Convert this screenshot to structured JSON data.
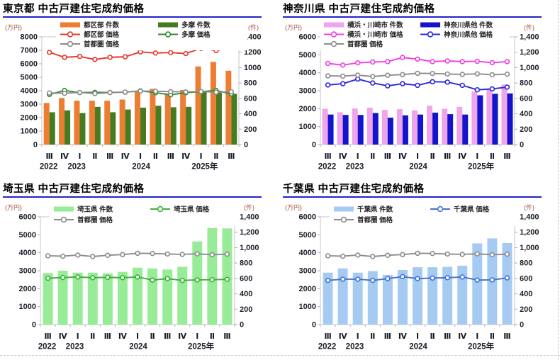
{
  "chart_data": [
    {
      "id": "tokyo",
      "type": "bar",
      "title": "東京都 中古戸建住宅成約価格",
      "left_axis": {
        "unit": "(万円)",
        "min": 0,
        "max": 8000,
        "tick_labels": [
          "8000",
          "7000",
          "6000",
          "5000",
          "4000",
          "3000",
          "2000",
          "1000",
          "0"
        ]
      },
      "right_axis": {
        "unit": "(件)",
        "min": 0,
        "max": 1400,
        "tick_labels": [
          "1400",
          "1200",
          "1000",
          "800",
          "600",
          "400",
          "200",
          "0"
        ]
      },
      "x_quarter_labels": [
        "Ⅲ",
        "Ⅳ",
        "Ⅰ",
        "Ⅱ",
        "Ⅲ",
        "Ⅳ",
        "Ⅰ",
        "Ⅱ",
        "Ⅲ",
        "Ⅳ",
        "Ⅰ",
        "Ⅱ",
        "Ⅲ"
      ],
      "x_year_labels": [
        {
          "label": "2022",
          "index": 0.45
        },
        {
          "label": "2023",
          "index": 2.3
        },
        {
          "label": "2024",
          "index": 6.55
        },
        {
          "label": "2025年",
          "index": 10.75
        }
      ],
      "bar_series": [
        {
          "name": "都区部 件数",
          "color": "#ED7D31",
          "axis": "right",
          "values": [
            540,
            605,
            570,
            570,
            570,
            585,
            690,
            725,
            650,
            710,
            1015,
            1075,
            960
          ]
        },
        {
          "name": "多摩 件数",
          "color": "#477B22",
          "axis": "right",
          "values": [
            420,
            445,
            410,
            490,
            420,
            455,
            480,
            505,
            485,
            490,
            690,
            690,
            660
          ]
        }
      ],
      "line_series": [
        {
          "name": "都区部 価格",
          "color": "#E8382A",
          "axis": "left",
          "values": [
            6850,
            6480,
            6550,
            6320,
            6480,
            6520,
            6880,
            6800,
            6830,
            6760,
            7140,
            6980,
            7200
          ]
        },
        {
          "name": "多摩 価格",
          "color": "#338A33",
          "axis": "left",
          "values": [
            3720,
            4020,
            3860,
            3880,
            3870,
            3890,
            3990,
            3850,
            3700,
            3850,
            3930,
            4020,
            3760
          ]
        },
        {
          "name": "首都圏 価格",
          "color": "#8C8C8C",
          "axis": "left",
          "values": [
            3830,
            3810,
            3870,
            3790,
            3860,
            3900,
            3970,
            3960,
            3930,
            3910,
            3940,
            3890,
            3920
          ]
        }
      ]
    },
    {
      "id": "kanagawa",
      "type": "bar",
      "title": "神奈川県 中古戸建住宅成約価格",
      "left_axis": {
        "unit": "(万円)",
        "min": 0,
        "max": 6000,
        "tick_labels": [
          "6000",
          "5000",
          "4000",
          "3000",
          "2000",
          "1000",
          "0"
        ]
      },
      "right_axis": {
        "unit": "(件)",
        "min": 0,
        "max": 1400,
        "tick_labels": [
          "1,400",
          "1,200",
          "1,000",
          "800",
          "600",
          "400",
          "200",
          "0"
        ]
      },
      "x_quarter_labels": [
        "Ⅲ",
        "Ⅳ",
        "Ⅰ",
        "Ⅱ",
        "Ⅲ",
        "Ⅳ",
        "Ⅰ",
        "Ⅱ",
        "Ⅲ",
        "Ⅳ",
        "Ⅰ",
        "Ⅱ",
        "Ⅲ"
      ],
      "x_year_labels": [
        {
          "label": "2022",
          "index": 0.45
        },
        {
          "label": "2023",
          "index": 2.3
        },
        {
          "label": "2024",
          "index": 6.55
        },
        {
          "label": "2025年",
          "index": 10.75
        }
      ],
      "bar_series": [
        {
          "name": "横浜・川崎市 件数",
          "color": "#EFA5EC",
          "axis": "right",
          "values": [
            465,
            420,
            470,
            480,
            450,
            460,
            445,
            505,
            465,
            490,
            690,
            730,
            780
          ]
        },
        {
          "name": "神奈川県他 件数",
          "color": "#1414CC",
          "axis": "right",
          "values": [
            390,
            385,
            385,
            410,
            350,
            380,
            390,
            415,
            395,
            390,
            640,
            660,
            665
          ]
        }
      ],
      "line_series": [
        {
          "name": "横浜・川崎市 価格",
          "color": "#F23CE4",
          "axis": "left",
          "values": [
            4520,
            4430,
            4550,
            4600,
            4620,
            4850,
            4760,
            4620,
            4660,
            4620,
            4640,
            4560,
            4620
          ]
        },
        {
          "name": "神奈川県他 価格",
          "color": "#2828DC",
          "axis": "left",
          "values": [
            3320,
            3390,
            3650,
            3430,
            3270,
            3390,
            3300,
            3500,
            3480,
            3300,
            3050,
            3100,
            3200
          ]
        },
        {
          "name": "首都圏 価格",
          "color": "#8C8C8C",
          "axis": "left",
          "values": [
            3830,
            3810,
            3870,
            3790,
            3860,
            3900,
            3970,
            3960,
            3930,
            3910,
            3940,
            3890,
            3920
          ]
        }
      ]
    },
    {
      "id": "saitama",
      "type": "bar",
      "title": "埼玉県 中古戸建住宅成約価格",
      "left_axis": {
        "unit": "(万円)",
        "min": 0,
        "max": 6000,
        "tick_labels": [
          "6000",
          "5000",
          "4000",
          "3000",
          "2000",
          "1000",
          "0"
        ]
      },
      "right_axis": {
        "unit": "(件)",
        "min": 0,
        "max": 1400,
        "tick_labels": [
          "1,400",
          "1,200",
          "1,000",
          "800",
          "600",
          "400",
          "200",
          "0"
        ]
      },
      "x_quarter_labels": [
        "Ⅲ",
        "Ⅳ",
        "Ⅰ",
        "Ⅱ",
        "Ⅲ",
        "Ⅳ",
        "Ⅰ",
        "Ⅱ",
        "Ⅲ",
        "Ⅳ",
        "Ⅰ",
        "Ⅱ",
        "Ⅲ"
      ],
      "x_year_labels": [
        {
          "label": "2022",
          "index": 0.45
        },
        {
          "label": "2023",
          "index": 2.3
        },
        {
          "label": "2024",
          "index": 6.55
        },
        {
          "label": "2025年",
          "index": 10.75
        }
      ],
      "bar_series": [
        {
          "name": "埼玉県 件数",
          "color": "#98EC98",
          "axis": "right",
          "values": [
            670,
            700,
            675,
            675,
            665,
            685,
            740,
            730,
            715,
            750,
            1080,
            1255,
            1250
          ]
        }
      ],
      "line_series": [
        {
          "name": "埼玉県 価格",
          "color": "#3FAE3F",
          "axis": "left",
          "values": [
            2580,
            2620,
            2650,
            2610,
            2630,
            2610,
            2650,
            2480,
            2560,
            2460,
            2490,
            2500,
            2520
          ]
        },
        {
          "name": "首都圏 価格",
          "color": "#8C8C8C",
          "axis": "left",
          "values": [
            3830,
            3810,
            3870,
            3790,
            3860,
            3900,
            3970,
            3960,
            3930,
            3910,
            3940,
            3890,
            3920
          ]
        }
      ]
    },
    {
      "id": "chiba",
      "type": "bar",
      "title": "千葉県 中古戸建住宅成約価格",
      "left_axis": {
        "unit": "(万円)",
        "min": 0,
        "max": 6000,
        "tick_labels": [
          "6000",
          "5000",
          "4000",
          "3000",
          "2000",
          "1000",
          "0"
        ]
      },
      "right_axis": {
        "unit": "(件)",
        "min": 0,
        "max": 1400,
        "tick_labels": [
          "1,400",
          "1,200",
          "1,000",
          "800",
          "600",
          "400",
          "200",
          "0"
        ]
      },
      "x_quarter_labels": [
        "Ⅲ",
        "Ⅳ",
        "Ⅰ",
        "Ⅱ",
        "Ⅲ",
        "Ⅳ",
        "Ⅰ",
        "Ⅱ",
        "Ⅲ",
        "Ⅳ",
        "Ⅰ",
        "Ⅱ",
        "Ⅲ"
      ],
      "x_year_labels": [
        {
          "label": "2022",
          "index": 0.45
        },
        {
          "label": "2023",
          "index": 2.3
        },
        {
          "label": "2024",
          "index": 6.55
        },
        {
          "label": "2025年",
          "index": 10.75
        }
      ],
      "bar_series": [
        {
          "name": "千葉県 件数",
          "color": "#A6CBF2",
          "axis": "right",
          "values": [
            675,
            730,
            675,
            695,
            645,
            710,
            745,
            745,
            750,
            765,
            1055,
            1120,
            1060
          ]
        }
      ],
      "line_series": [
        {
          "name": "千葉県 価格",
          "color": "#4472CC",
          "axis": "left",
          "values": [
            2460,
            2530,
            2530,
            2460,
            2560,
            2670,
            2560,
            2590,
            2610,
            2650,
            2480,
            2490,
            2600
          ]
        },
        {
          "name": "首都圏 価格",
          "color": "#8C8C8C",
          "axis": "left",
          "values": [
            3830,
            3810,
            3870,
            3790,
            3860,
            3900,
            3970,
            3960,
            3930,
            3910,
            3940,
            3890,
            3920
          ]
        }
      ]
    }
  ]
}
